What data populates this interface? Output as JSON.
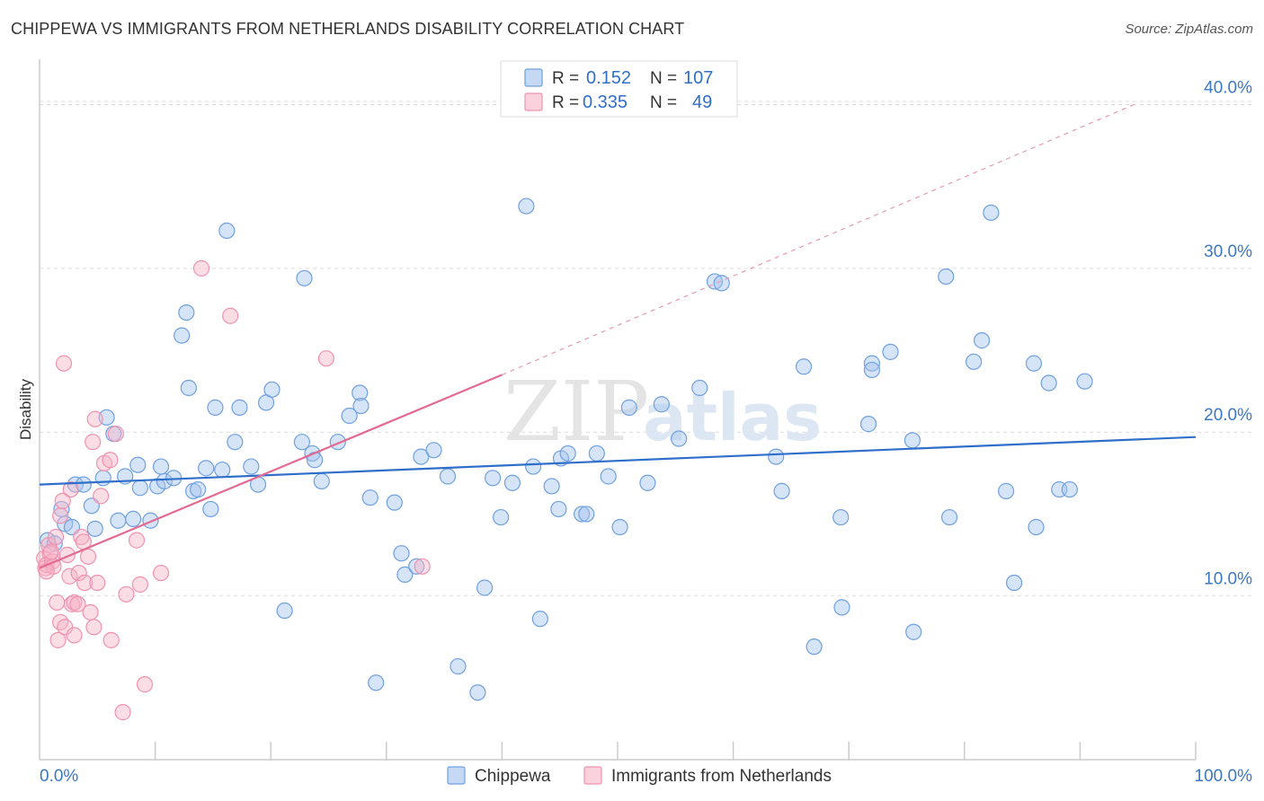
{
  "title": "CHIPPEWA VS IMMIGRANTS FROM NETHERLANDS DISABILITY CORRELATION CHART",
  "source": "Source: ZipAtlas.com",
  "chart_data": {
    "type": "scatter",
    "ylabel": "Disability",
    "xlabel": "",
    "xlim": [
      0,
      100
    ],
    "ylim": [
      0,
      42
    ],
    "x_tick_labels": [
      "0.0%",
      "100.0%"
    ],
    "y_ticks": [
      10,
      20,
      30,
      40
    ],
    "y_tick_labels": [
      "10.0%",
      "20.0%",
      "30.0%",
      "40.0%"
    ],
    "grid": true,
    "watermark": "ZIPatlas",
    "legend": {
      "r_label": "R =",
      "n_label": "N =",
      "entries": [
        {
          "name": "Chippewa",
          "r": "0.152",
          "n": "107",
          "color": "#6fa0e0"
        },
        {
          "name": "Immigrants from Netherlands",
          "r": "0.335",
          "n": "49",
          "color": "#f092ad"
        }
      ]
    },
    "series": [
      {
        "name": "Chippewa",
        "color": "#6fa0e0",
        "trend": {
          "x": [
            0,
            100
          ],
          "y": [
            16.8,
            19.7
          ],
          "color": "#2f6fca",
          "dashed": false
        },
        "points": [
          [
            0.7,
            13.4
          ],
          [
            1.3,
            13.2
          ],
          [
            1.9,
            15.3
          ],
          [
            2.2,
            14.4
          ],
          [
            2.8,
            14.2
          ],
          [
            3.1,
            16.8
          ],
          [
            3.8,
            16.8
          ],
          [
            4.5,
            15.5
          ],
          [
            4.8,
            14.1
          ],
          [
            5.5,
            17.2
          ],
          [
            5.8,
            20.9
          ],
          [
            6.4,
            19.9
          ],
          [
            6.8,
            14.6
          ],
          [
            7.4,
            17.3
          ],
          [
            8.1,
            14.7
          ],
          [
            8.5,
            18.0
          ],
          [
            8.7,
            16.6
          ],
          [
            9.6,
            14.6
          ],
          [
            10.2,
            16.7
          ],
          [
            10.5,
            17.9
          ],
          [
            10.8,
            17.0
          ],
          [
            11.6,
            17.2
          ],
          [
            12.3,
            25.9
          ],
          [
            12.7,
            27.3
          ],
          [
            12.9,
            22.7
          ],
          [
            13.3,
            16.4
          ],
          [
            13.7,
            16.5
          ],
          [
            14.4,
            17.8
          ],
          [
            14.8,
            15.3
          ],
          [
            15.2,
            21.5
          ],
          [
            15.8,
            17.7
          ],
          [
            16.2,
            32.3
          ],
          [
            16.9,
            19.4
          ],
          [
            17.3,
            21.5
          ],
          [
            18.3,
            17.9
          ],
          [
            18.9,
            16.8
          ],
          [
            19.6,
            21.8
          ],
          [
            20.1,
            22.6
          ],
          [
            21.2,
            9.1
          ],
          [
            22.7,
            19.4
          ],
          [
            22.9,
            29.4
          ],
          [
            23.6,
            18.7
          ],
          [
            23.8,
            18.3
          ],
          [
            24.4,
            17.0
          ],
          [
            25.8,
            19.4
          ],
          [
            26.8,
            21.0
          ],
          [
            27.7,
            22.4
          ],
          [
            27.8,
            21.6
          ],
          [
            28.6,
            16.0
          ],
          [
            29.1,
            4.7
          ],
          [
            30.7,
            15.7
          ],
          [
            31.3,
            12.6
          ],
          [
            31.6,
            11.3
          ],
          [
            32.6,
            11.8
          ],
          [
            33.0,
            18.5
          ],
          [
            34.1,
            18.9
          ],
          [
            35.3,
            17.3
          ],
          [
            36.2,
            5.7
          ],
          [
            37.9,
            4.1
          ],
          [
            38.5,
            10.5
          ],
          [
            39.2,
            17.2
          ],
          [
            39.9,
            14.8
          ],
          [
            40.9,
            16.9
          ],
          [
            42.1,
            33.8
          ],
          [
            42.7,
            17.9
          ],
          [
            43.3,
            8.6
          ],
          [
            44.3,
            16.7
          ],
          [
            44.9,
            15.3
          ],
          [
            45.1,
            18.4
          ],
          [
            45.7,
            18.7
          ],
          [
            46.9,
            15.0
          ],
          [
            47.3,
            15.0
          ],
          [
            48.2,
            18.7
          ],
          [
            49.2,
            17.3
          ],
          [
            50.2,
            14.2
          ],
          [
            51.0,
            21.5
          ],
          [
            52.6,
            16.9
          ],
          [
            53.8,
            21.7
          ],
          [
            55.3,
            19.6
          ],
          [
            57.1,
            22.7
          ],
          [
            58.4,
            29.2
          ],
          [
            59.0,
            29.1
          ],
          [
            63.7,
            18.5
          ],
          [
            64.2,
            16.4
          ],
          [
            66.1,
            24.0
          ],
          [
            67.0,
            6.9
          ],
          [
            69.3,
            14.8
          ],
          [
            69.4,
            9.3
          ],
          [
            71.7,
            20.5
          ],
          [
            72.0,
            24.2
          ],
          [
            72.0,
            23.8
          ],
          [
            73.6,
            24.9
          ],
          [
            75.5,
            19.5
          ],
          [
            75.6,
            7.8
          ],
          [
            78.4,
            29.5
          ],
          [
            78.7,
            14.8
          ],
          [
            80.8,
            24.3
          ],
          [
            81.5,
            25.6
          ],
          [
            82.3,
            33.4
          ],
          [
            83.6,
            16.4
          ],
          [
            84.3,
            10.8
          ],
          [
            86.2,
            14.2
          ],
          [
            87.3,
            23.0
          ],
          [
            88.2,
            16.5
          ],
          [
            89.1,
            16.5
          ],
          [
            90.4,
            23.1
          ],
          [
            86.0,
            24.2
          ]
        ]
      },
      {
        "name": "Immigrants from Netherlands",
        "color": "#f092ad",
        "trend": {
          "x": [
            0,
            40
          ],
          "y": [
            11.7,
            23.5
          ],
          "color": "#e36a92",
          "dashed": false
        },
        "trend_extension": {
          "x": [
            40,
            95
          ],
          "y": [
            23.5,
            40.1
          ],
          "color": "#e899b2",
          "dashed": true
        },
        "points": [
          [
            0.4,
            12.3
          ],
          [
            0.5,
            11.7
          ],
          [
            0.6,
            11.9
          ],
          [
            0.8,
            13.1
          ],
          [
            0.9,
            12.6
          ],
          [
            1.1,
            12.1
          ],
          [
            1.2,
            11.8
          ],
          [
            1.4,
            13.6
          ],
          [
            1.5,
            9.6
          ],
          [
            1.6,
            7.3
          ],
          [
            1.8,
            8.4
          ],
          [
            1.8,
            14.9
          ],
          [
            2.1,
            24.2
          ],
          [
            2.2,
            8.1
          ],
          [
            2.4,
            12.5
          ],
          [
            2.6,
            11.2
          ],
          [
            2.7,
            16.5
          ],
          [
            2.8,
            9.5
          ],
          [
            3.0,
            7.6
          ],
          [
            3.0,
            9.6
          ],
          [
            3.3,
            9.5
          ],
          [
            3.4,
            11.4
          ],
          [
            3.6,
            13.6
          ],
          [
            3.8,
            13.3
          ],
          [
            3.9,
            10.8
          ],
          [
            4.2,
            12.4
          ],
          [
            4.4,
            9.0
          ],
          [
            4.6,
            19.4
          ],
          [
            4.7,
            8.1
          ],
          [
            4.8,
            20.8
          ],
          [
            5.0,
            10.8
          ],
          [
            5.3,
            16.1
          ],
          [
            5.6,
            18.1
          ],
          [
            6.1,
            18.3
          ],
          [
            6.2,
            7.3
          ],
          [
            6.6,
            19.9
          ],
          [
            7.2,
            2.9
          ],
          [
            7.5,
            10.1
          ],
          [
            8.4,
            13.4
          ],
          [
            8.7,
            10.7
          ],
          [
            9.1,
            4.6
          ],
          [
            10.5,
            11.4
          ],
          [
            14.0,
            30.0
          ],
          [
            16.5,
            27.1
          ],
          [
            24.8,
            24.5
          ],
          [
            33.1,
            11.8
          ],
          [
            0.6,
            11.5
          ],
          [
            1.0,
            12.7
          ],
          [
            2.0,
            15.8
          ]
        ]
      }
    ]
  }
}
